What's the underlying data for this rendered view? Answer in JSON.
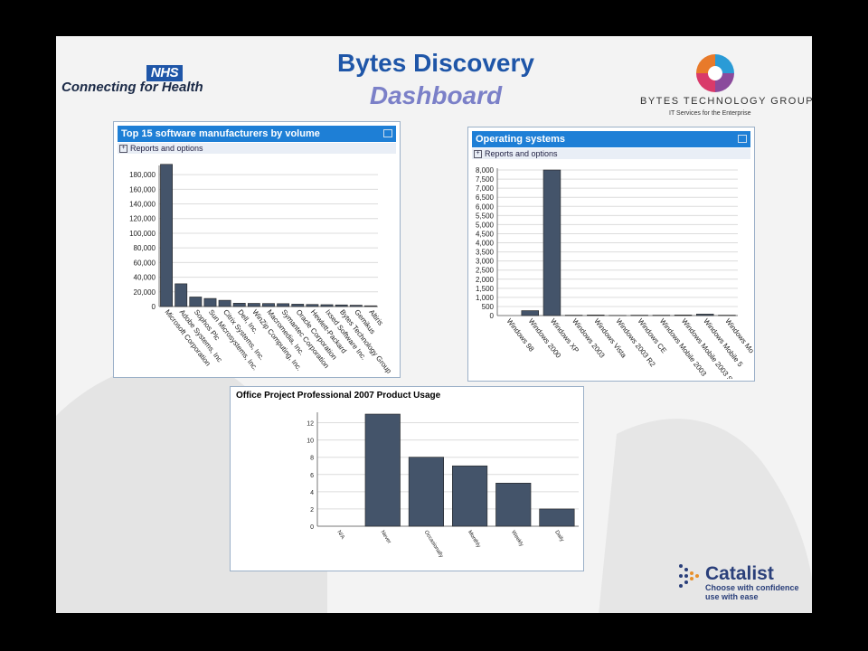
{
  "header": {
    "title": "Bytes Discovery",
    "subtitle": "Dashboard",
    "nhs_logo_text": "NHS",
    "nhs_tagline": "Connecting for Health",
    "btg_name": "BYTES TECHNOLOGY GROUP",
    "btg_tagline": "IT Services for the Enterprise"
  },
  "panels": {
    "manufacturers": {
      "title": "Top 15 software manufacturers by volume",
      "options": "Reports and options"
    },
    "os": {
      "title": "Operating systems",
      "options": "Reports and options"
    },
    "project": {
      "title": "Office Project Professional 2007 Product Usage"
    }
  },
  "footer": {
    "catalist_name": "Catalist",
    "catalist_tag1": "Choose with confidence",
    "catalist_tag2": "use with ease"
  },
  "colors": {
    "bar": "#44546a",
    "header": "#1e7fd6",
    "title": "#1f56a8",
    "subtitle": "#7b80c8"
  },
  "chart_data": [
    {
      "type": "bar",
      "title": "Top 15 software manufacturers by volume",
      "categories": [
        "Microsoft Corporation",
        "Adobe Systems, Inc",
        "Sophos Plc",
        "Sun Microsystems, Inc.",
        "Citrix Systems, Inc.",
        "Dell, Inc.",
        "WinZip Computing, Inc.",
        "Macromedia, Inc.",
        "Symantec Corporation",
        "Oracle Corporation",
        "Hewlett-Packard",
        "Ixsed Software Inc.",
        "Bytes Technology Group",
        "Gemikus",
        "Altiris"
      ],
      "values": [
        194000,
        31000,
        13000,
        11000,
        8500,
        4500,
        4300,
        4100,
        3900,
        3200,
        2800,
        2500,
        2200,
        1800,
        1000
      ],
      "ylim": [
        0,
        190000
      ],
      "yticks": [
        0,
        20000,
        40000,
        60000,
        80000,
        100000,
        120000,
        140000,
        160000,
        180000
      ],
      "ytick_labels": [
        "0",
        "20,000",
        "40,000",
        "60,000",
        "80,000",
        "100,000",
        "120,000",
        "140,000",
        "160,000",
        "180,000"
      ],
      "grid": true
    },
    {
      "type": "bar",
      "title": "Operating systems",
      "categories": [
        "Windows 98",
        "Windows 2000",
        "Windows XP",
        "Windows 2003",
        "Windows Vista",
        "Windows 2003 R2",
        "Windows CE",
        "Windows Mobile 2003",
        "Windows Mobile 2003 SE",
        "Windows Mobile 5",
        "Windows Mo"
      ],
      "values": [
        0,
        270,
        8000,
        20,
        30,
        10,
        20,
        20,
        30,
        80,
        20
      ],
      "ylim": [
        0,
        8000
      ],
      "yticks": [
        0,
        500,
        1000,
        1500,
        2000,
        2500,
        3000,
        3500,
        4000,
        4500,
        5000,
        5500,
        6000,
        6500,
        7000,
        7500,
        8000
      ],
      "ytick_labels": [
        "0",
        "500",
        "1,000",
        "1,500",
        "2,000",
        "2,500",
        "3,000",
        "3,500",
        "4,000",
        "4,500",
        "5,000",
        "5,500",
        "6,000",
        "6,500",
        "7,000",
        "7,500",
        "8,000"
      ],
      "grid": true
    },
    {
      "type": "bar",
      "title": "Office Project Professional 2007 Product Usage",
      "categories": [
        "N/A",
        "Never",
        "Occasionally",
        "Monthly",
        "Weekly",
        "Daily"
      ],
      "values": [
        0,
        13,
        8,
        7,
        5,
        2
      ],
      "ylim": [
        0,
        13
      ],
      "yticks": [
        0,
        2,
        4,
        6,
        8,
        10,
        12
      ],
      "ytick_labels": [
        "0",
        "2",
        "4",
        "6",
        "8",
        "10",
        "12"
      ],
      "grid": true
    }
  ]
}
